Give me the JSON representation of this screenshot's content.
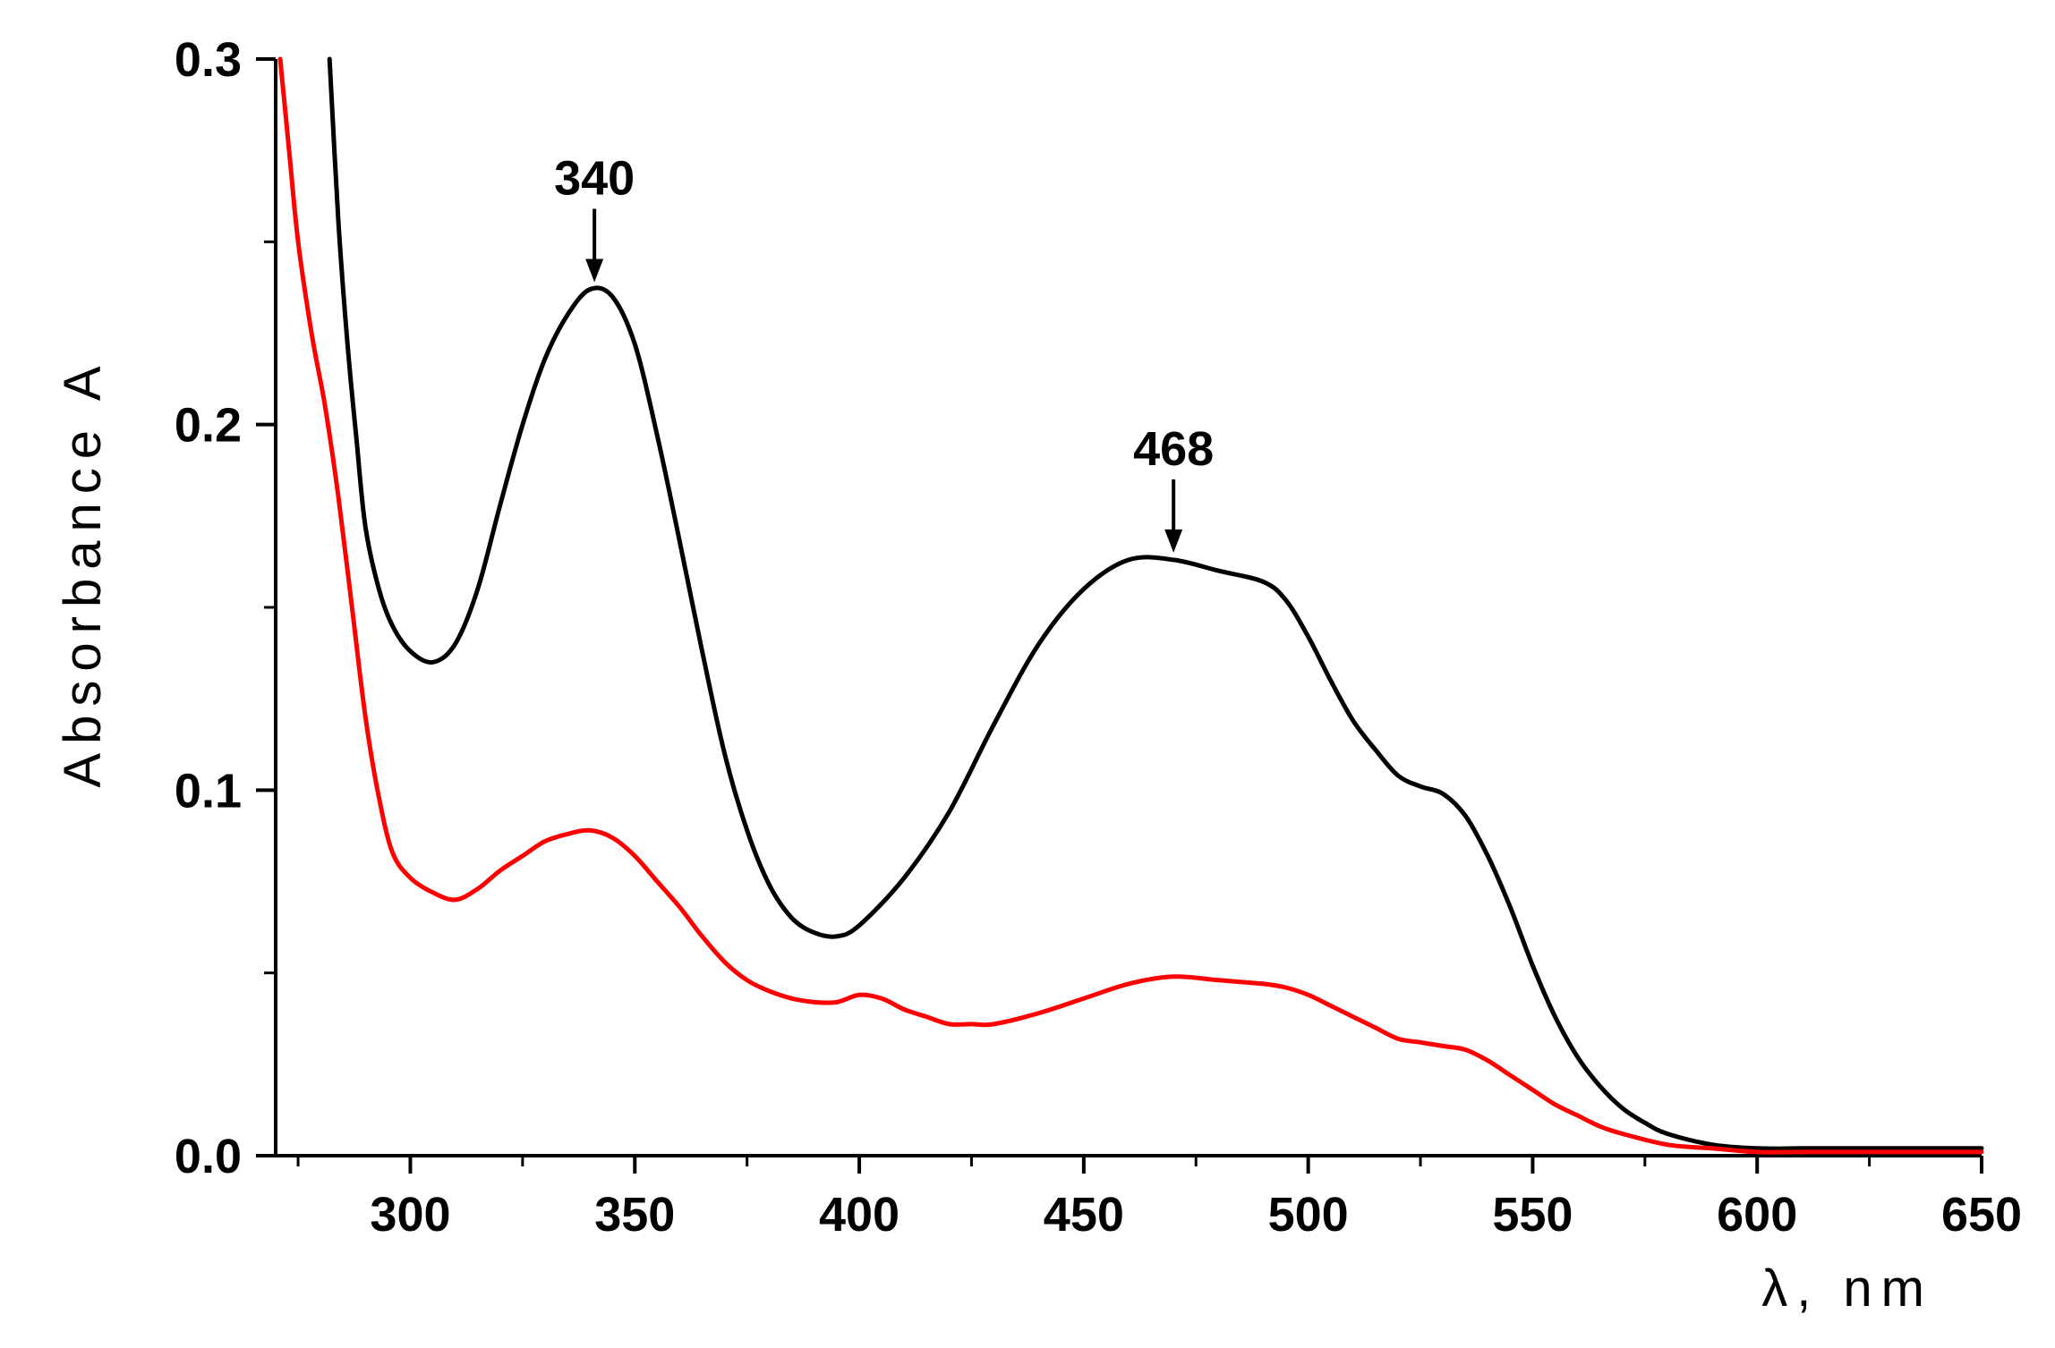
{
  "chart_data": {
    "type": "line",
    "title": "",
    "xlabel": "λ, nm",
    "ylabel": "Absorbance A",
    "xlim": [
      270,
      650
    ],
    "ylim": [
      0.0,
      0.3
    ],
    "x_ticks": [
      300,
      350,
      400,
      450,
      500,
      550,
      600,
      650
    ],
    "x_tick_labels": [
      "300",
      "350",
      "400",
      "450",
      "500",
      "550",
      "600",
      "650"
    ],
    "x_minor_step": 25,
    "y_ticks": [
      0.0,
      0.1,
      0.2,
      0.3
    ],
    "y_tick_labels": [
      "0.0",
      "0.1",
      "0.2",
      "0.3"
    ],
    "y_minor_step": 0.05,
    "grid": false,
    "legend": "none",
    "series": [
      {
        "color": "#000000",
        "x": [
          282,
          284,
          286,
          288,
          290,
          293,
          296,
          300,
          305,
          310,
          315,
          320,
          325,
          330,
          335,
          340,
          345,
          350,
          355,
          360,
          365,
          370,
          375,
          380,
          385,
          390,
          395,
          400,
          410,
          420,
          430,
          440,
          450,
          460,
          470,
          480,
          490,
          495,
          500,
          505,
          510,
          515,
          520,
          525,
          530,
          535,
          540,
          545,
          550,
          555,
          560,
          565,
          570,
          575,
          580,
          590,
          600,
          610,
          620,
          650
        ],
        "y": [
          0.3,
          0.255,
          0.222,
          0.196,
          0.172,
          0.155,
          0.145,
          0.138,
          0.135,
          0.14,
          0.155,
          0.178,
          0.2,
          0.218,
          0.23,
          0.237,
          0.235,
          0.222,
          0.197,
          0.168,
          0.138,
          0.11,
          0.089,
          0.074,
          0.065,
          0.061,
          0.06,
          0.063,
          0.076,
          0.094,
          0.118,
          0.14,
          0.155,
          0.163,
          0.163,
          0.16,
          0.157,
          0.152,
          0.142,
          0.13,
          0.119,
          0.111,
          0.104,
          0.101,
          0.099,
          0.093,
          0.082,
          0.068,
          0.052,
          0.038,
          0.027,
          0.019,
          0.013,
          0.009,
          0.006,
          0.003,
          0.002,
          0.002,
          0.002,
          0.002
        ]
      },
      {
        "color": "#ff0000",
        "x": [
          271,
          273,
          275,
          278,
          281,
          284,
          287,
          290,
          293,
          296,
          300,
          305,
          310,
          315,
          320,
          325,
          330,
          335,
          340,
          345,
          350,
          355,
          360,
          365,
          370,
          375,
          380,
          385,
          390,
          395,
          400,
          405,
          410,
          415,
          420,
          425,
          430,
          440,
          450,
          460,
          470,
          480,
          490,
          495,
          500,
          505,
          510,
          515,
          520,
          525,
          530,
          535,
          540,
          545,
          550,
          555,
          560,
          565,
          570,
          580,
          590,
          600,
          610,
          620,
          650
        ],
        "y": [
          0.3,
          0.275,
          0.25,
          0.225,
          0.205,
          0.18,
          0.15,
          0.12,
          0.098,
          0.083,
          0.076,
          0.072,
          0.07,
          0.073,
          0.078,
          0.082,
          0.086,
          0.088,
          0.089,
          0.087,
          0.082,
          0.075,
          0.068,
          0.06,
          0.053,
          0.048,
          0.045,
          0.043,
          0.042,
          0.042,
          0.044,
          0.043,
          0.04,
          0.038,
          0.036,
          0.036,
          0.036,
          0.039,
          0.043,
          0.047,
          0.049,
          0.048,
          0.047,
          0.046,
          0.044,
          0.041,
          0.038,
          0.035,
          0.032,
          0.031,
          0.03,
          0.029,
          0.026,
          0.022,
          0.018,
          0.014,
          0.011,
          0.008,
          0.006,
          0.003,
          0.002,
          0.001,
          0.001,
          0.001,
          0.001
        ]
      }
    ],
    "annotations": [
      {
        "text": "340",
        "x": 341,
        "y": 0.237
      },
      {
        "text": "468",
        "x": 470,
        "y": 0.163
      }
    ]
  }
}
